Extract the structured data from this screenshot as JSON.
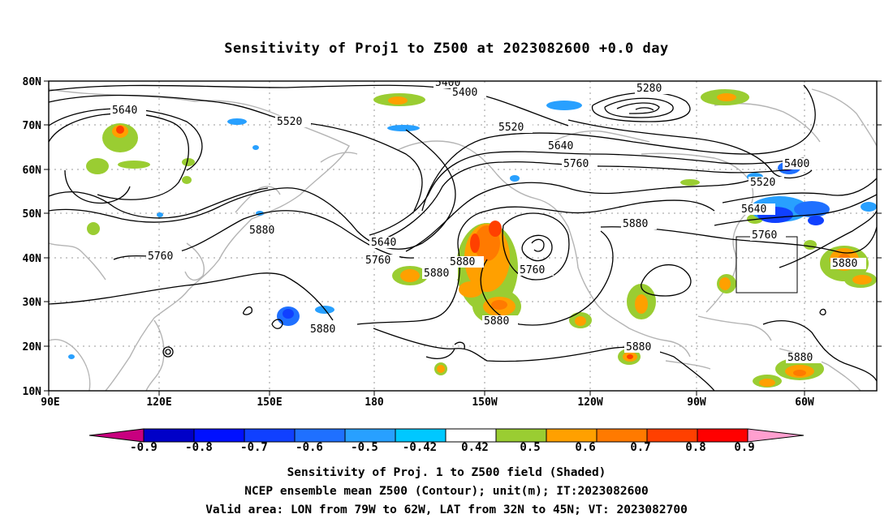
{
  "title": "Sensitivity of Proj1 to Z500 at 2023082600 +0.0 day",
  "map": {
    "lat_labels": [
      "80N",
      "70N",
      "60N",
      "50N",
      "40N",
      "30N",
      "20N",
      "10N"
    ],
    "lon_labels": [
      "90E",
      "120E",
      "150E",
      "180",
      "150W",
      "120W",
      "90W",
      "60W"
    ],
    "contour_labels": [
      {
        "text": "5400",
        "pos": "top-center"
      },
      {
        "text": "5400",
        "pos": "top-center-2"
      },
      {
        "text": "5280",
        "pos": "top-right"
      },
      {
        "text": "5640",
        "pos": "top-left"
      },
      {
        "text": "5520",
        "pos": "left-mid"
      },
      {
        "text": "5520",
        "pos": "center"
      },
      {
        "text": "5640",
        "pos": "center-right"
      },
      {
        "text": "5760",
        "pos": "center-right-2"
      },
      {
        "text": "5400",
        "pos": "right"
      },
      {
        "text": "5520",
        "pos": "right-2"
      },
      {
        "text": "5640",
        "pos": "right-3"
      },
      {
        "text": "5760",
        "pos": "right-4"
      },
      {
        "text": "5880",
        "pos": "right-5"
      },
      {
        "text": "5880",
        "pos": "left-low"
      },
      {
        "text": "5760",
        "pos": "left-low-2"
      },
      {
        "text": "5640",
        "pos": "mid-low"
      },
      {
        "text": "5760",
        "pos": "mid-low-2"
      },
      {
        "text": "5880",
        "pos": "mid-low-3"
      },
      {
        "text": "5880",
        "pos": "mid-low-4"
      },
      {
        "text": "5760",
        "pos": "low-center"
      },
      {
        "text": "5880",
        "pos": "low-left"
      },
      {
        "text": "5880",
        "pos": "low-center-2"
      },
      {
        "text": "5880",
        "pos": "low-right"
      },
      {
        "text": "5880",
        "pos": "low-right-2"
      },
      {
        "text": "5880",
        "pos": "far-right"
      }
    ]
  },
  "colorbar": {
    "labels": [
      "-0.9",
      "-0.8",
      "-0.7",
      "-0.6",
      "-0.5",
      "-0.42",
      "0.42",
      "0.5",
      "0.6",
      "0.7",
      "0.8",
      "0.9"
    ],
    "colors": [
      "#c8007f",
      "#0000c8",
      "#0010ff",
      "#1040ff",
      "#1f70ff",
      "#28a0ff",
      "#00c8ff",
      "#ffffff",
      "#9acd32",
      "#ffa000",
      "#ff7a00",
      "#ff4000",
      "#ff0000",
      "#ff9fcf"
    ]
  },
  "captions": [
    "Sensitivity of Proj. 1 to Z500 field (Shaded)",
    "NCEP ensemble mean Z500 (Contour); unit(m); IT:2023082600",
    "Valid area: LON from 79W to 62W, LAT from 32N to 45N; VT: 2023082700"
  ]
}
